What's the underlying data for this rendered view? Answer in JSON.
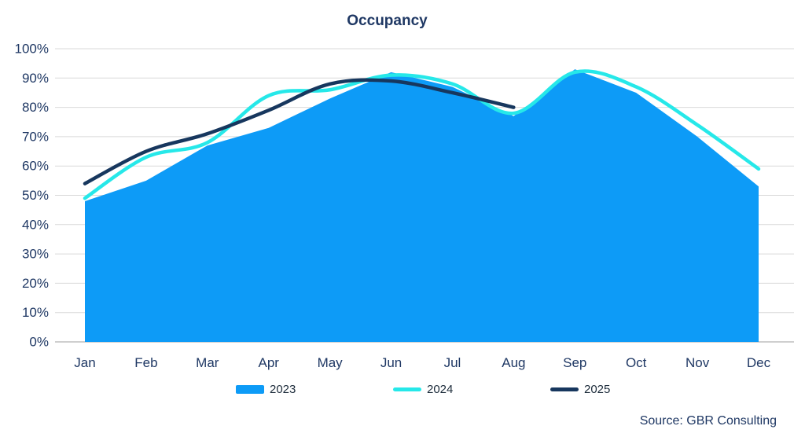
{
  "title": "Occupancy",
  "source": "Source: GBR Consulting",
  "colors": {
    "series_2023": "#0D9BF7",
    "series_2024": "#26E8E9",
    "series_2025": "#17375E",
    "text_navy": "#1F3864",
    "legend_text": "#1C2B3A",
    "gridline": "#D9D9D9",
    "axis_line": "#BFBFBF",
    "background": "#FFFFFF"
  },
  "chart_data": {
    "type": "combo",
    "title": "Occupancy",
    "categories": [
      "Jan",
      "Feb",
      "Mar",
      "Apr",
      "May",
      "Jun",
      "Jul",
      "Aug",
      "Sep",
      "Oct",
      "Nov",
      "Dec"
    ],
    "series": [
      {
        "name": "2023",
        "type": "area",
        "color": "#0D9BF7",
        "smooth": false,
        "values": [
          48,
          55,
          67,
          73,
          83,
          92,
          87,
          77,
          93,
          85,
          70,
          53
        ]
      },
      {
        "name": "2024",
        "type": "line",
        "color": "#26E8E9",
        "smooth": true,
        "values": [
          49,
          63,
          68,
          84,
          86,
          91,
          88,
          78,
          92,
          87,
          74,
          59
        ]
      },
      {
        "name": "2025",
        "type": "line",
        "color": "#17375E",
        "smooth": true,
        "values": [
          54,
          65,
          71,
          79,
          88,
          89,
          85,
          80,
          null,
          null,
          null,
          null
        ]
      }
    ],
    "ylabel": "",
    "xlabel": "",
    "ylim": [
      0,
      100
    ],
    "ytick_step": 10,
    "ytick_format": "percent",
    "grid": "horizontal",
    "legend_position": "bottom",
    "legend_labels": [
      "2023",
      "2024",
      "2025"
    ]
  }
}
